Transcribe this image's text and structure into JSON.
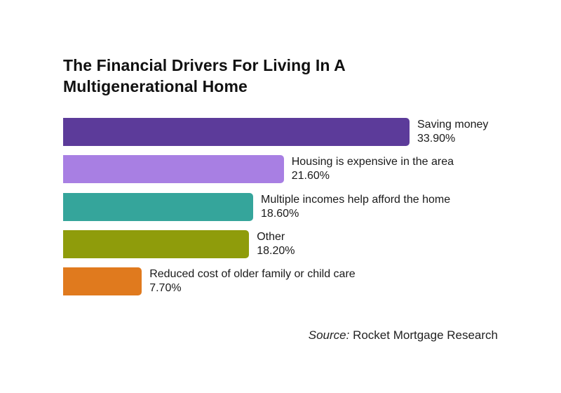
{
  "chart_data": {
    "type": "bar",
    "orientation": "horizontal",
    "title": "The Financial Drivers For Living In A Multigenerational Home",
    "categories": [
      "Saving money",
      "Housing is expensive in the area",
      "Multiple incomes help afford the home",
      "Other",
      "Reduced cost of older family or child care"
    ],
    "values": [
      33.9,
      21.6,
      18.6,
      18.2,
      7.7
    ],
    "value_labels": [
      "33.90%",
      "21.60%",
      "18.60%",
      "18.20%",
      "7.70%"
    ],
    "colors": [
      "#5c3b9a",
      "#a87fe3",
      "#35a59b",
      "#8f9c0b",
      "#e07a1e"
    ],
    "unit": "%",
    "xlabel": "",
    "ylabel": "",
    "xlim": [
      0,
      33.9
    ],
    "grid": false,
    "legend": "none"
  },
  "source": {
    "prefix": "Source:",
    "text": " Rocket Mortgage Research"
  }
}
